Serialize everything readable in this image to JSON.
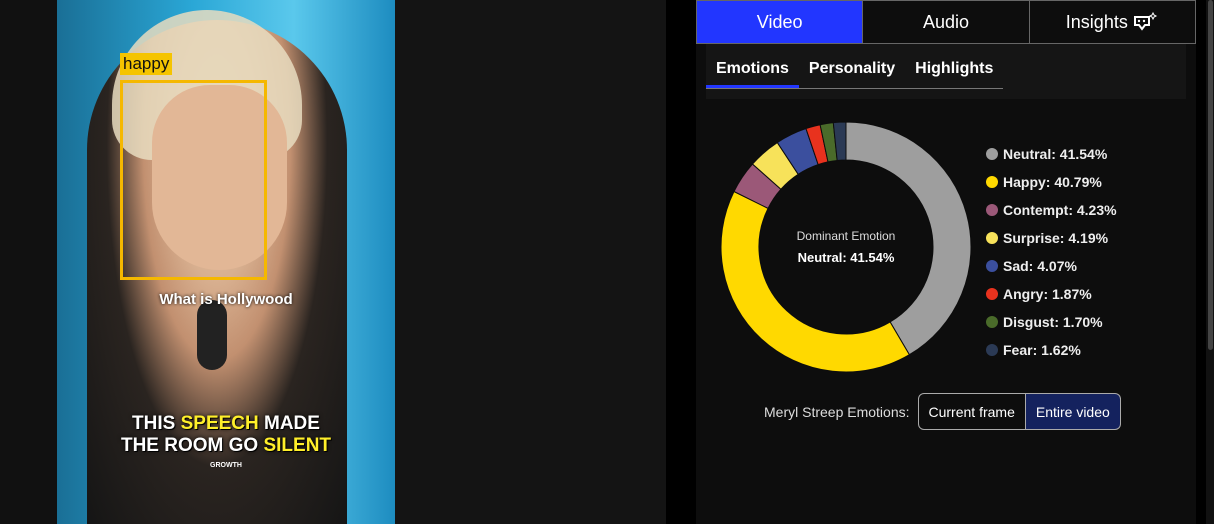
{
  "video": {
    "face_label": "happy",
    "subtitle": "What is Hollywood",
    "caption_line1": [
      "THIS ",
      "SPEECH",
      " MADE"
    ],
    "caption_line2": [
      "THE ROOM GO ",
      "SILENT"
    ],
    "watermark": "GROWTH"
  },
  "tabs": [
    {
      "label": "Video",
      "active": true
    },
    {
      "label": "Audio"
    },
    {
      "label": "Insights",
      "icon": "sparkle-chat-icon"
    }
  ],
  "subtabs": [
    {
      "label": "Emotions",
      "active": true
    },
    {
      "label": "Personality"
    },
    {
      "label": "Highlights"
    }
  ],
  "chart_data": {
    "type": "pie",
    "donut": true,
    "center_title": "Dominant Emotion",
    "center_value": "Neutral: 41.54%",
    "categories": [
      "Neutral",
      "Happy",
      "Contempt",
      "Surprise",
      "Sad",
      "Angry",
      "Disgust",
      "Fear"
    ],
    "values": [
      41.54,
      40.79,
      4.23,
      4.19,
      4.07,
      1.87,
      1.7,
      1.62
    ],
    "labels": [
      "Neutral: 41.54%",
      "Happy: 40.79%",
      "Contempt: 4.23%",
      "Surprise: 4.19%",
      "Sad: 4.07%",
      "Angry: 1.87%",
      "Disgust: 1.70%",
      "Fear: 1.62%"
    ],
    "colors": [
      "#9e9e9e",
      "#ffd900",
      "#9b5878",
      "#f7e25a",
      "#3b4f9e",
      "#e8321e",
      "#4a6b2a",
      "#2b3a55"
    ],
    "legend": "right"
  },
  "scope": {
    "label": "Meryl Streep Emotions:",
    "options": [
      "Current frame",
      "Entire video"
    ],
    "selected": "Entire video"
  }
}
